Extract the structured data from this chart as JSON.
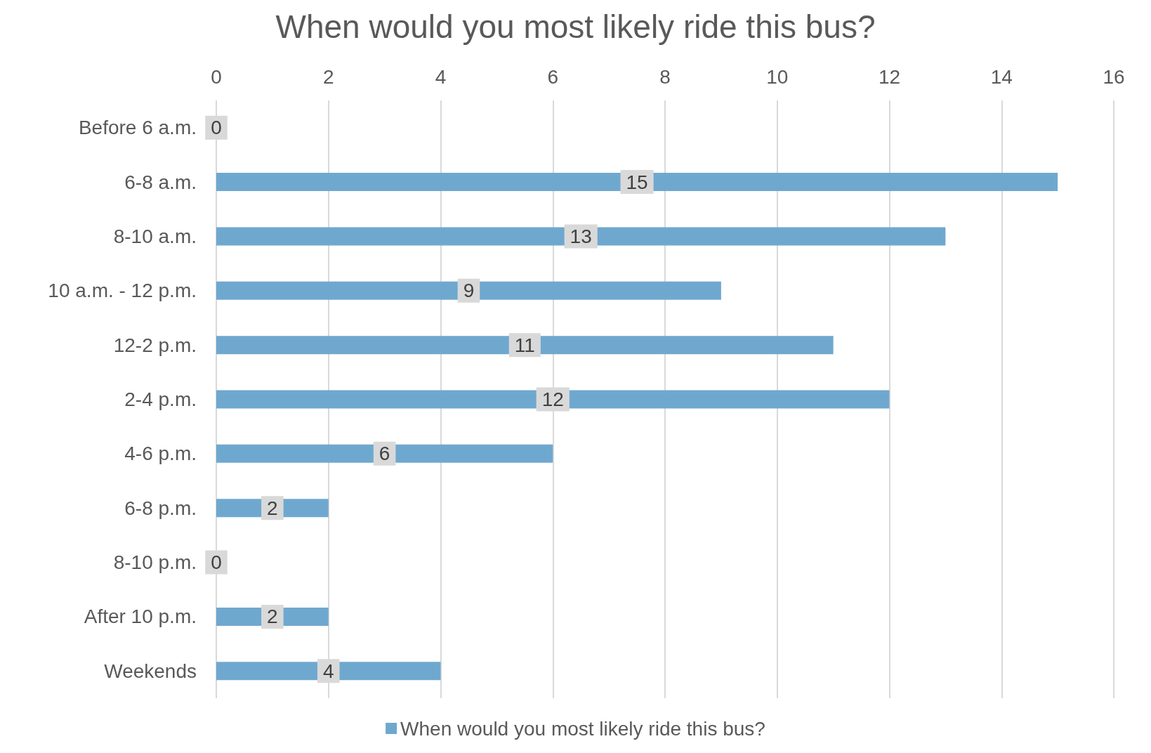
{
  "chart_data": {
    "type": "bar",
    "orientation": "horizontal",
    "title": "When would you most likely ride this bus?",
    "categories": [
      "Before 6 a.m.",
      "6-8 a.m.",
      "8-10 a.m.",
      "10 a.m. - 12 p.m.",
      "12-2 p.m.",
      "2-4 p.m.",
      "4-6 p.m.",
      "6-8 p.m.",
      "8-10 p.m.",
      "After 10 p.m.",
      "Weekends"
    ],
    "series": [
      {
        "name": "When would you most likely ride this bus?",
        "color": "#6fa8cf",
        "values": [
          0,
          15,
          13,
          9,
          11,
          12,
          6,
          2,
          0,
          2,
          4
        ]
      }
    ],
    "xlim": [
      0,
      16
    ],
    "xticks": [
      0,
      2,
      4,
      6,
      8,
      10,
      12,
      14,
      16
    ],
    "grid": "x",
    "legend": "bottom",
    "data_labels": true
  }
}
